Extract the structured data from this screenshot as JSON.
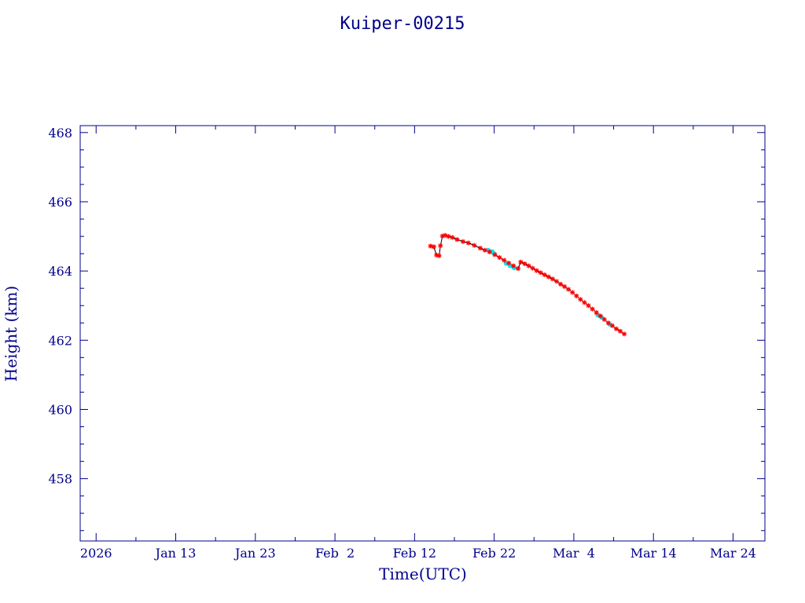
{
  "chart_data": {
    "type": "line",
    "title": "Kuiper-00215",
    "xlabel": "Time(UTC)",
    "ylabel": "Height (km)",
    "xlim": [
      "2026-01-01",
      "2026-03-28"
    ],
    "ylim": [
      456.2,
      468.2
    ],
    "x_tick_labels": [
      "2026",
      "Jan 13",
      "Jan 23",
      "Feb  2",
      "Feb 12",
      "Feb 22",
      "Mar  4",
      "Mar 14",
      "Mar 24"
    ],
    "x_tick_dates": [
      "2026-01-03",
      "2026-01-13",
      "2026-01-23",
      "2026-02-02",
      "2026-02-12",
      "2026-02-22",
      "2026-03-04",
      "2026-03-14",
      "2026-03-24"
    ],
    "y_tick_labels": [
      "458",
      "460",
      "462",
      "464",
      "466",
      "468"
    ],
    "y_tick_values": [
      458,
      460,
      462,
      464,
      466,
      468
    ],
    "grid": false,
    "colors": {
      "axis": "#00008b",
      "line": "#000000",
      "marker": "#ff0000",
      "overlay": "#00e5ee"
    },
    "series": [
      {
        "marker": "asterisk",
        "color": "#ff0000",
        "points": [
          [
            "2026-02-14T00:00",
            464.72
          ],
          [
            "2026-02-14T10:00",
            464.7
          ],
          [
            "2026-02-14T18:00",
            464.46
          ],
          [
            "2026-02-15T02:00",
            464.44
          ],
          [
            "2026-02-15T06:00",
            464.73
          ],
          [
            "2026-02-15T12:00",
            465.01
          ],
          [
            "2026-02-15T20:00",
            465.03
          ],
          [
            "2026-02-16T06:00",
            465.0
          ],
          [
            "2026-02-16T18:00",
            464.97
          ],
          [
            "2026-02-17T08:00",
            464.91
          ],
          [
            "2026-02-18T02:00",
            464.85
          ],
          [
            "2026-02-18T18:00",
            464.81
          ],
          [
            "2026-02-19T12:00",
            464.74
          ],
          [
            "2026-02-20T06:00",
            464.66
          ],
          [
            "2026-02-20T20:00",
            464.6
          ],
          [
            "2026-02-21T10:00",
            464.55
          ],
          [
            "2026-02-22T02:00",
            464.47
          ],
          [
            "2026-02-22T16:00",
            464.39
          ],
          [
            "2026-02-23T06:00",
            464.31
          ],
          [
            "2026-02-23T20:00",
            464.23
          ],
          [
            "2026-02-24T10:00",
            464.15
          ],
          [
            "2026-02-25T00:00",
            464.07
          ],
          [
            "2026-02-25T08:00",
            464.26
          ],
          [
            "2026-02-25T20:00",
            464.21
          ],
          [
            "2026-02-26T08:00",
            464.15
          ],
          [
            "2026-02-26T20:00",
            464.08
          ],
          [
            "2026-02-27T08:00",
            464.01
          ],
          [
            "2026-02-27T20:00",
            463.95
          ],
          [
            "2026-02-28T08:00",
            463.89
          ],
          [
            "2026-02-28T20:00",
            463.83
          ],
          [
            "2026-03-01T08:00",
            463.77
          ],
          [
            "2026-03-01T20:00",
            463.7
          ],
          [
            "2026-03-02T08:00",
            463.62
          ],
          [
            "2026-03-02T20:00",
            463.55
          ],
          [
            "2026-03-03T08:00",
            463.47
          ],
          [
            "2026-03-03T20:00",
            463.38
          ],
          [
            "2026-03-04T08:00",
            463.28
          ],
          [
            "2026-03-04T20:00",
            463.18
          ],
          [
            "2026-03-05T08:00",
            463.09
          ],
          [
            "2026-03-05T20:00",
            463.0
          ],
          [
            "2026-03-06T08:00",
            462.9
          ],
          [
            "2026-03-06T20:00",
            462.8
          ],
          [
            "2026-03-07T08:00",
            462.7
          ],
          [
            "2026-03-07T20:00",
            462.6
          ],
          [
            "2026-03-08T08:00",
            462.5
          ],
          [
            "2026-03-08T20:00",
            462.42
          ],
          [
            "2026-03-09T08:00",
            462.33
          ],
          [
            "2026-03-09T20:00",
            462.26
          ],
          [
            "2026-03-10T08:00",
            462.18
          ]
        ]
      },
      {
        "marker": "dot",
        "color": "#00e5ee",
        "points": [
          [
            "2026-02-21T06:00",
            464.6
          ],
          [
            "2026-02-21T18:00",
            464.56
          ],
          [
            "2026-02-22T00:00",
            464.5
          ],
          [
            "2026-02-23T12:00",
            464.22
          ],
          [
            "2026-02-24T00:00",
            464.15
          ],
          [
            "2026-02-24T12:00",
            464.09
          ],
          [
            "2026-03-07T00:00",
            462.73
          ],
          [
            "2026-03-07T12:00",
            462.66
          ],
          [
            "2026-03-08T12:00",
            462.46
          ]
        ]
      }
    ]
  }
}
